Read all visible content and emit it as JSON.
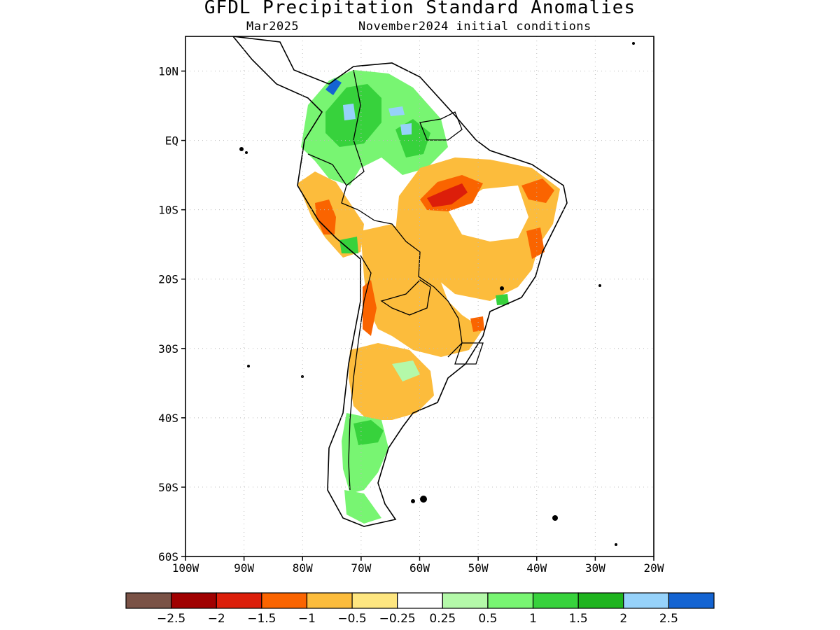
{
  "title": "GFDL Precipitation Standard Anomalies",
  "subtitle_left": "Mar2025",
  "subtitle_right": "November2024 initial conditions",
  "map": {
    "lon_range": [
      -100,
      -20
    ],
    "lat_range": [
      -60,
      15
    ],
    "x_ticks": [
      "100W",
      "90W",
      "80W",
      "70W",
      "60W",
      "50W",
      "40W",
      "30W",
      "20W"
    ],
    "y_ticks": [
      "10N",
      "EQ",
      "10S",
      "20S",
      "30S",
      "40S",
      "50S",
      "60S"
    ],
    "grid": "dotted",
    "coastline_color": "#000000"
  },
  "colorbar": {
    "colors": [
      "#7a5246",
      "#a00000",
      "#dc1e0a",
      "#fa6400",
      "#fcbc3c",
      "#fee680",
      "#ffffff",
      "#b4f9a9",
      "#78f572",
      "#37d23c",
      "#1eb41e",
      "#96d2fa",
      "#1464d2"
    ],
    "labels": [
      "−2.5",
      "−2",
      "−1.5",
      "−1",
      "−0.5",
      "−0.25",
      "0.25",
      "0.5",
      "1",
      "1.5",
      "2",
      "2.5"
    ]
  }
}
